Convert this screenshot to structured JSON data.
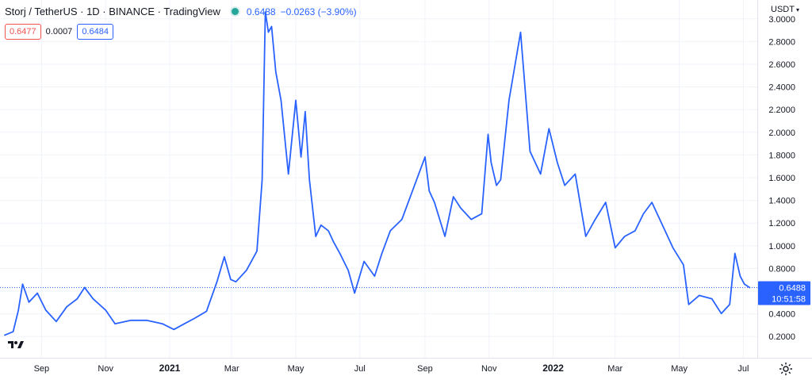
{
  "header": {
    "title": "Storj / TetherUS · 1D · BINANCE · TradingView",
    "price": "0.6488",
    "change": "−0.0263 (−3.90%)"
  },
  "quote": {
    "bid": "0.6477",
    "spread": "0.0007",
    "ask": "0.6484"
  },
  "currency_label": "USDT",
  "last_price_label": {
    "price": "0.6488",
    "countdown": "10:51:58"
  },
  "colors": {
    "line": "#2962ff",
    "grid": "#f0f3fa",
    "axis_text": "#131722",
    "price_line": "#2962ff"
  },
  "icons": {
    "logo": "tradingview-logo-icon",
    "settings": "gear-icon",
    "status": "market-open-dot-icon"
  },
  "chart_data": {
    "type": "line",
    "ylim": [
      0.1,
      3.2
    ],
    "y_ticks": [
      "3.0000",
      "2.8000",
      "2.6000",
      "2.4000",
      "2.2000",
      "2.0000",
      "1.8000",
      "1.6000",
      "1.4000",
      "1.2000",
      "1.0000",
      "0.8000",
      "0.6000",
      "0.4000",
      "0.2000"
    ],
    "x_ticks": [
      "Sep",
      "Nov",
      "2021",
      "Mar",
      "May",
      "Jul",
      "Sep",
      "Nov",
      "2022",
      "Mar",
      "May",
      "Jul"
    ],
    "grid": true,
    "series": [
      {
        "x": [
          "2020-07-28",
          "2020-08-05",
          "2020-08-10",
          "2020-08-14",
          "2020-08-20",
          "2020-08-28",
          "2020-09-05",
          "2020-09-15",
          "2020-09-25",
          "2020-10-05",
          "2020-10-12",
          "2020-10-20",
          "2020-11-01",
          "2020-11-10",
          "2020-11-25",
          "2020-12-10",
          "2020-12-25",
          "2021-01-05",
          "2021-01-15",
          "2021-01-25",
          "2021-02-05",
          "2021-02-15",
          "2021-02-22",
          "2021-02-28",
          "2021-03-05",
          "2021-03-15",
          "2021-03-25",
          "2021-03-30",
          "2021-04-02",
          "2021-04-05",
          "2021-04-08",
          "2021-04-12",
          "2021-04-17",
          "2021-04-24",
          "2021-05-01",
          "2021-05-06",
          "2021-05-10",
          "2021-05-14",
          "2021-05-20",
          "2021-05-25",
          "2021-06-01",
          "2021-06-06",
          "2021-06-12",
          "2021-06-20",
          "2021-06-26",
          "2021-07-05",
          "2021-07-15",
          "2021-07-22",
          "2021-07-30",
          "2021-08-10",
          "2021-08-20",
          "2021-09-01",
          "2021-09-05",
          "2021-09-10",
          "2021-09-20",
          "2021-09-28",
          "2021-10-05",
          "2021-10-15",
          "2021-10-25",
          "2021-10-31",
          "2021-11-03",
          "2021-11-08",
          "2021-11-12",
          "2021-11-20",
          "2021-12-01",
          "2021-12-04",
          "2021-12-10",
          "2021-12-20",
          "2021-12-28",
          "2022-01-05",
          "2022-01-12",
          "2022-01-22",
          "2022-02-01",
          "2022-02-10",
          "2022-02-20",
          "2022-03-01",
          "2022-03-10",
          "2022-03-20",
          "2022-03-28",
          "2022-04-05",
          "2022-04-15",
          "2022-04-25",
          "2022-05-05",
          "2022-05-10",
          "2022-05-20",
          "2022-06-01",
          "2022-06-10",
          "2022-06-18",
          "2022-06-23",
          "2022-06-28",
          "2022-07-02",
          "2022-07-07"
        ],
        "values": [
          0.23,
          0.26,
          0.45,
          0.68,
          0.52,
          0.6,
          0.45,
          0.35,
          0.48,
          0.55,
          0.65,
          0.55,
          0.45,
          0.33,
          0.36,
          0.36,
          0.33,
          0.28,
          0.33,
          0.38,
          0.44,
          0.7,
          0.92,
          0.72,
          0.7,
          0.8,
          0.97,
          1.6,
          3.08,
          2.9,
          2.95,
          2.55,
          2.3,
          1.65,
          2.3,
          1.8,
          2.2,
          1.6,
          1.1,
          1.2,
          1.15,
          1.05,
          0.95,
          0.8,
          0.6,
          0.88,
          0.75,
          0.95,
          1.15,
          1.25,
          1.5,
          1.8,
          1.5,
          1.4,
          1.1,
          1.45,
          1.35,
          1.25,
          1.3,
          2.0,
          1.75,
          1.55,
          1.6,
          2.3,
          2.9,
          2.55,
          1.85,
          1.65,
          2.05,
          1.75,
          1.55,
          1.65,
          1.1,
          1.25,
          1.4,
          1.0,
          1.1,
          1.15,
          1.3,
          1.4,
          1.2,
          1.0,
          0.85,
          0.5,
          0.58,
          0.55,
          0.42,
          0.5,
          0.95,
          0.75,
          0.68,
          0.6488
        ]
      }
    ]
  }
}
